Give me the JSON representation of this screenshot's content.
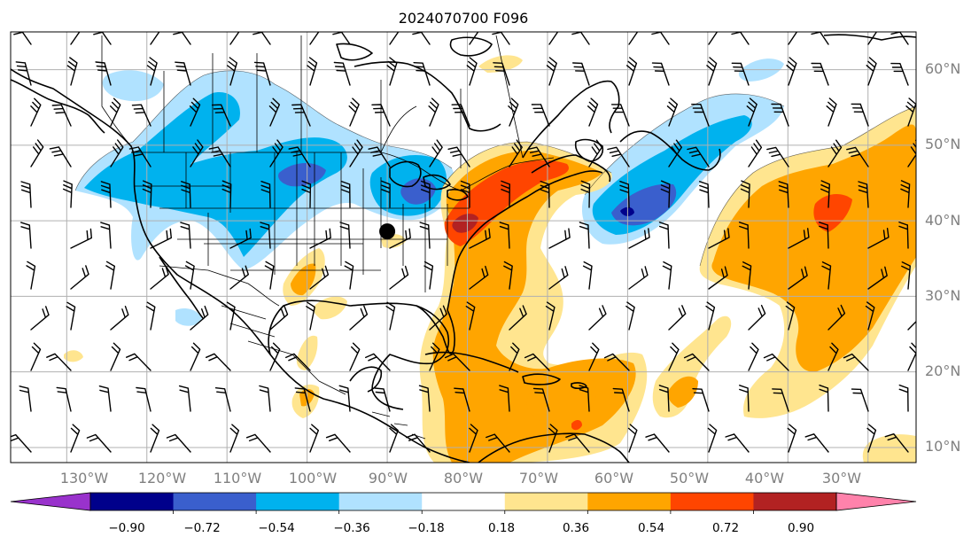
{
  "title": "2024070700 F096",
  "map": {
    "projection": "plate-carree",
    "extent": {
      "lon_min": -137,
      "lon_max": -24,
      "lat_min": 8,
      "lat_max": 65
    },
    "lon_labels": [
      "130°W",
      "120°W",
      "110°W",
      "100°W",
      "90°W",
      "80°W",
      "70°W",
      "60°W",
      "50°W",
      "40°W",
      "30°W"
    ],
    "lon_values": [
      -130,
      -120,
      -110,
      -100,
      -90,
      -80,
      -70,
      -60,
      -50,
      -40,
      -30
    ],
    "lat_labels": [
      "10°N",
      "20°N",
      "30°N",
      "40°N",
      "50°N",
      "60°N"
    ],
    "lat_values": [
      10,
      20,
      30,
      40,
      50,
      60
    ],
    "grid": true,
    "label_color": "#808080",
    "marker": {
      "name": "station-dot",
      "lon": -90.0,
      "lat": 38.6,
      "color": "#000000"
    },
    "features": [
      "coastlines",
      "country-borders",
      "us-state-borders",
      "wind-barbs",
      "filled-contours"
    ]
  },
  "colorbar": {
    "orientation": "horizontal",
    "extend": "both",
    "ticks": [
      "−0.90",
      "−0.72",
      "−0.54",
      "−0.36",
      "−0.18",
      "0.18",
      "0.36",
      "0.54",
      "0.72",
      "0.90"
    ],
    "colors": [
      "#9932cc",
      "#00008b",
      "#3a5fcd",
      "#00b2ee",
      "#b0e2ff",
      "#ffffff",
      "#ffe58f",
      "#ffa500",
      "#ff4500",
      "#b22222",
      "#ff82ab"
    ]
  },
  "anomalies": [
    {
      "lon": -105,
      "lat": 45,
      "level": -0.36,
      "name": "western-us-negative"
    },
    {
      "lon": -85,
      "lat": 44,
      "level": -0.54,
      "name": "great-lakes-negative"
    },
    {
      "lon": -55,
      "lat": 42,
      "level": -0.54,
      "name": "atlantic-negative"
    },
    {
      "lon": -75,
      "lat": 42,
      "level": 0.72,
      "name": "northeast-positive"
    },
    {
      "lon": -40,
      "lat": 38,
      "level": 0.54,
      "name": "mid-atlantic-positive"
    },
    {
      "lon": -65,
      "lat": 20,
      "level": 0.36,
      "name": "caribbean-positive"
    }
  ]
}
